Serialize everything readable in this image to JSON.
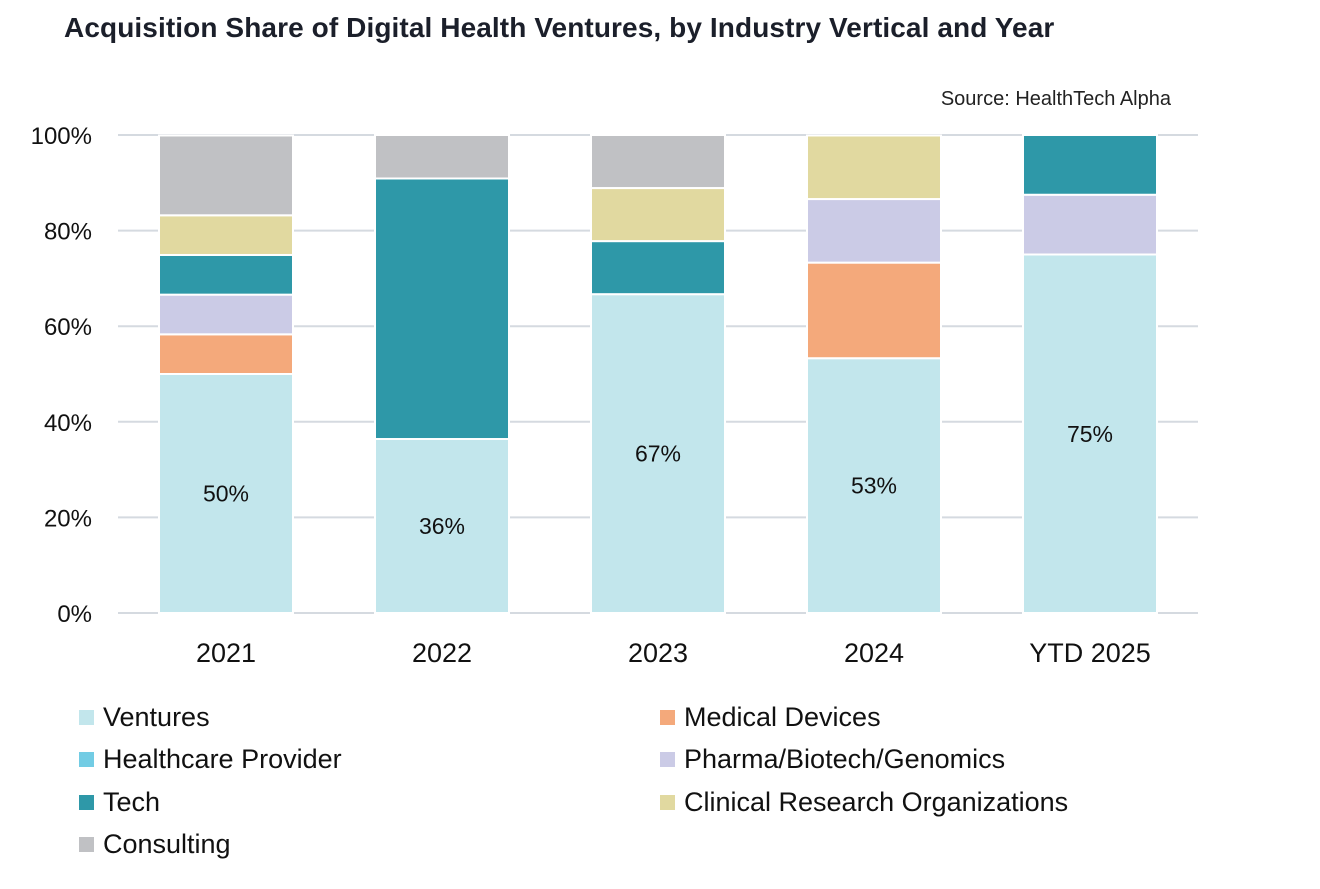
{
  "chart_data": {
    "type": "bar",
    "stacked": true,
    "title": "Acquisition Share of Digital Health Ventures, by Industry Vertical and Year",
    "source": "Source: HealthTech Alpha",
    "xlabel": "",
    "ylabel": "",
    "ylim": [
      0,
      100
    ],
    "yticks": [
      0,
      20,
      40,
      60,
      80,
      100
    ],
    "ytick_labels": [
      "0%",
      "20%",
      "40%",
      "60%",
      "80%",
      "100%"
    ],
    "grid": true,
    "legend_position": "bottom",
    "categories": [
      "2021",
      "2022",
      "2023",
      "2024",
      "YTD 2025"
    ],
    "series": [
      {
        "name": "Ventures",
        "color": "#C2E6EC",
        "values": [
          50.0,
          36.4,
          66.7,
          53.3,
          75.0
        ]
      },
      {
        "name": "Healthcare Provider",
        "color": "#72CCE4",
        "values": [
          0,
          0,
          0,
          0,
          0
        ]
      },
      {
        "name": "Medical Devices",
        "color": "#F4A97B",
        "values": [
          8.3,
          0,
          0,
          20.0,
          0
        ]
      },
      {
        "name": "Pharma/Biotech/Genomics",
        "color": "#CBCBE6",
        "values": [
          8.3,
          0,
          0,
          13.3,
          12.5
        ]
      },
      {
        "name": "Tech",
        "color": "#2E98A8",
        "values": [
          8.3,
          54.5,
          11.1,
          0,
          12.5
        ]
      },
      {
        "name": "Clinical Research Organizations",
        "color": "#E1D9A0",
        "values": [
          8.3,
          0,
          11.1,
          13.3,
          0
        ]
      },
      {
        "name": "Consulting",
        "color": "#C0C1C4",
        "values": [
          16.7,
          9.1,
          11.1,
          0,
          0
        ]
      }
    ],
    "data_labels": {
      "series": "Ventures",
      "labels": [
        "50%",
        "36%",
        "67%",
        "53%",
        "75%"
      ]
    },
    "legend_order": [
      "Ventures",
      "Medical Devices",
      "Healthcare Provider",
      "Pharma/Biotech/Genomics",
      "Tech",
      "Clinical Research Organizations",
      "Consulting"
    ]
  }
}
